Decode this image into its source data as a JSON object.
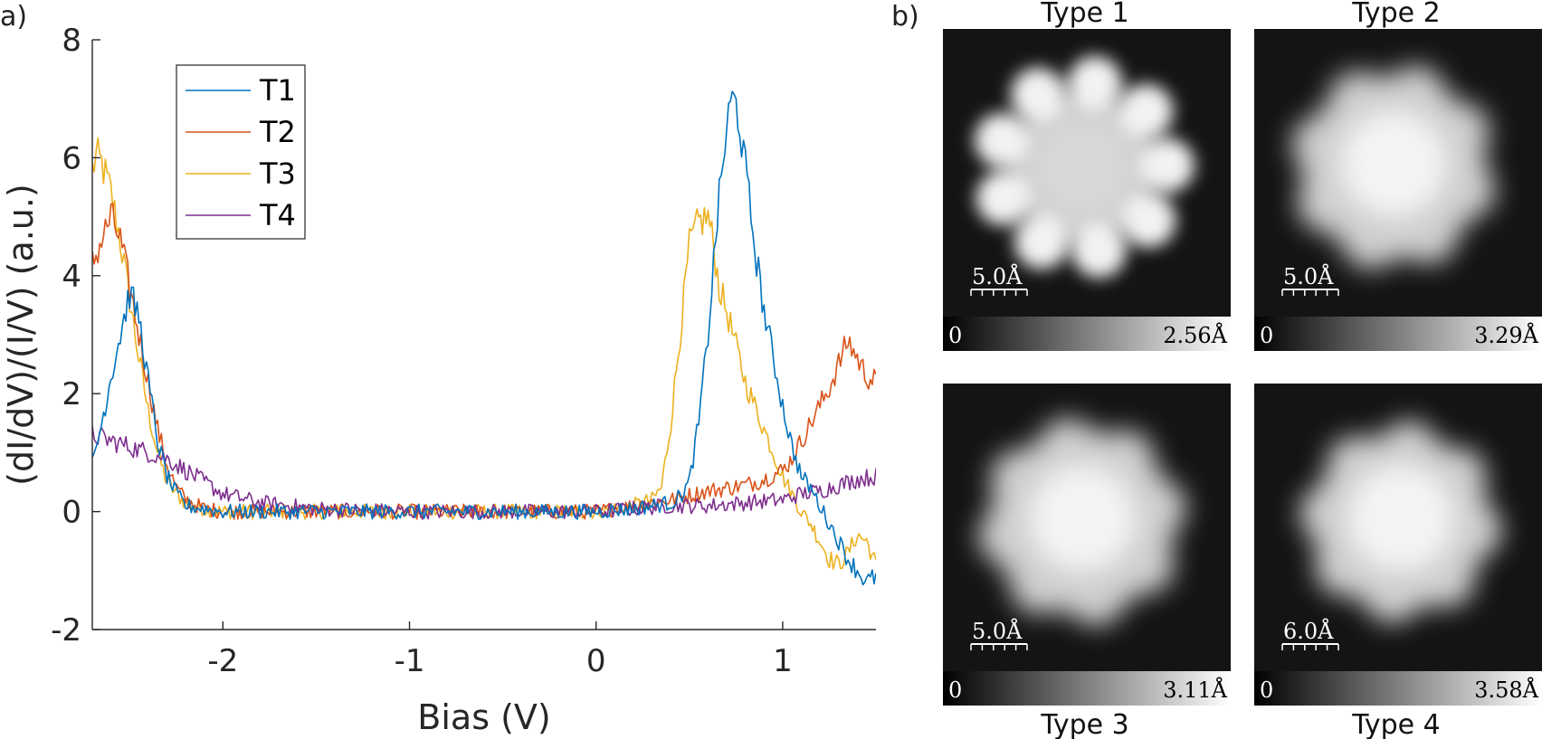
{
  "panel_a_label": "a)",
  "panel_b_label": "b)",
  "chart_data": {
    "type": "line",
    "xlabel": "Bias (V)",
    "ylabel": "(dI/dV)/(I/V) (a.u.)",
    "xlim": [
      -2.7,
      1.5
    ],
    "ylim": [
      -2,
      8
    ],
    "xticks": [
      -2,
      -1,
      0,
      1
    ],
    "yticks": [
      -2,
      0,
      2,
      4,
      6,
      8
    ],
    "legend_position": "top-left",
    "grid": false,
    "series": [
      {
        "name": "T1",
        "color": "#0072BD",
        "x": [
          -2.7,
          -2.65,
          -2.6,
          -2.55,
          -2.5,
          -2.45,
          -2.4,
          -2.35,
          -2.3,
          -2.25,
          -2.2,
          -2.1,
          -2.0,
          -1.5,
          -1.0,
          -0.5,
          0.0,
          0.2,
          0.3,
          0.4,
          0.45,
          0.5,
          0.55,
          0.6,
          0.65,
          0.7,
          0.73,
          0.76,
          0.8,
          0.85,
          0.9,
          0.95,
          1.0,
          1.05,
          1.1,
          1.15,
          1.2,
          1.25,
          1.3,
          1.35,
          1.4,
          1.45,
          1.5
        ],
        "y": [
          0.8,
          1.5,
          2.3,
          3.0,
          3.7,
          3.3,
          2.2,
          1.2,
          0.6,
          0.3,
          0.1,
          0.05,
          0.0,
          0.0,
          0.0,
          0.0,
          0.0,
          0.05,
          0.1,
          0.15,
          0.25,
          0.5,
          1.5,
          3.0,
          5.0,
          6.5,
          7.0,
          6.8,
          5.8,
          4.5,
          3.4,
          2.6,
          1.8,
          1.1,
          0.6,
          0.4,
          0.1,
          -0.2,
          -0.5,
          -0.8,
          -1.0,
          -1.2,
          -1.1
        ]
      },
      {
        "name": "T2",
        "color": "#D95319",
        "x": [
          -2.7,
          -2.65,
          -2.6,
          -2.55,
          -2.5,
          -2.45,
          -2.4,
          -2.35,
          -2.3,
          -2.25,
          -2.2,
          -2.1,
          -2.0,
          -1.5,
          -1.0,
          -0.5,
          0.0,
          0.2,
          0.4,
          0.6,
          0.8,
          0.9,
          1.0,
          1.05,
          1.1,
          1.15,
          1.2,
          1.25,
          1.3,
          1.35,
          1.4,
          1.45,
          1.5
        ],
        "y": [
          4.2,
          4.6,
          5.0,
          4.6,
          3.8,
          3.0,
          2.2,
          1.4,
          0.8,
          0.4,
          0.2,
          0.05,
          0.0,
          0.0,
          0.0,
          0.0,
          0.0,
          0.1,
          0.2,
          0.35,
          0.45,
          0.55,
          0.7,
          0.9,
          1.2,
          1.5,
          1.8,
          2.1,
          2.5,
          2.9,
          2.6,
          2.3,
          2.2
        ]
      },
      {
        "name": "T3",
        "color": "#EDB120",
        "x": [
          -2.7,
          -2.68,
          -2.65,
          -2.6,
          -2.55,
          -2.5,
          -2.45,
          -2.4,
          -2.35,
          -2.3,
          -2.25,
          -2.2,
          -2.1,
          -2.0,
          -1.5,
          -1.0,
          -0.5,
          0.0,
          0.2,
          0.3,
          0.35,
          0.4,
          0.45,
          0.5,
          0.55,
          0.6,
          0.63,
          0.66,
          0.7,
          0.75,
          0.8,
          0.85,
          0.9,
          0.95,
          1.0,
          1.05,
          1.1,
          1.15,
          1.2,
          1.25,
          1.3,
          1.35,
          1.4,
          1.45,
          1.5
        ],
        "y": [
          5.8,
          6.0,
          5.9,
          5.4,
          4.6,
          3.6,
          2.6,
          1.7,
          1.0,
          0.5,
          0.3,
          0.15,
          0.05,
          0.0,
          0.0,
          0.0,
          0.0,
          0.0,
          0.1,
          0.2,
          0.4,
          1.5,
          3.0,
          4.5,
          4.9,
          5.0,
          4.5,
          3.8,
          3.4,
          2.8,
          2.2,
          1.8,
          1.4,
          1.0,
          0.6,
          0.3,
          0.0,
          -0.2,
          -0.5,
          -0.8,
          -0.9,
          -0.7,
          -0.4,
          -0.5,
          -0.9
        ]
      },
      {
        "name": "T4",
        "color": "#7E2F8E",
        "x": [
          -2.7,
          -2.6,
          -2.5,
          -2.4,
          -2.3,
          -2.2,
          -2.1,
          -2.0,
          -1.8,
          -1.5,
          -1.0,
          -0.5,
          0.0,
          0.2,
          0.4,
          0.6,
          0.8,
          1.0,
          1.1,
          1.2,
          1.3,
          1.4,
          1.5
        ],
        "y": [
          1.3,
          1.2,
          1.1,
          1.0,
          0.9,
          0.7,
          0.5,
          0.3,
          0.15,
          0.05,
          0.0,
          0.0,
          0.0,
          0.05,
          0.1,
          0.1,
          0.15,
          0.2,
          0.3,
          0.35,
          0.45,
          0.55,
          0.6
        ]
      }
    ]
  },
  "stm_images": [
    {
      "title": "Type 1",
      "scale_label": "5.0Å",
      "cb_min": "0",
      "cb_max": "2.56Å"
    },
    {
      "title": "Type 2",
      "scale_label": "5.0Å",
      "cb_min": "0",
      "cb_max": "3.29Å"
    },
    {
      "title": "Type 3",
      "scale_label": "5.0Å",
      "cb_min": "0",
      "cb_max": "3.11Å"
    },
    {
      "title": "Type 4",
      "scale_label": "6.0Å",
      "cb_min": "0",
      "cb_max": "3.58Å"
    }
  ]
}
